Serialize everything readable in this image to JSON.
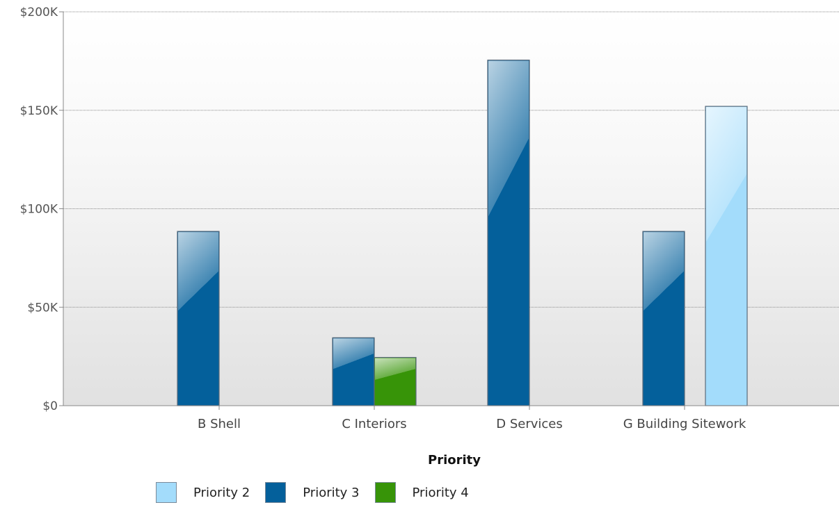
{
  "chart_data": {
    "type": "bar",
    "categories": [
      "B Shell",
      "C Interiors",
      "D Services",
      "G Building Sitework"
    ],
    "series": [
      {
        "name": "Priority 2",
        "color": "#a3dcfb",
        "values": [
          null,
          null,
          null,
          152000
        ]
      },
      {
        "name": "Priority 3",
        "color": "#04609b",
        "values": [
          88500,
          34500,
          175500,
          88500
        ]
      },
      {
        "name": "Priority 4",
        "color": "#379408",
        "values": [
          null,
          24500,
          null,
          null
        ]
      }
    ],
    "y_ticks": [
      "$0",
      "$50K",
      "$100K",
      "$150K",
      "$200K"
    ],
    "ylim": [
      0,
      200000
    ],
    "grid": true,
    "legend_title": "Priority",
    "legend_position": "bottom",
    "title": "",
    "xlabel": "",
    "ylabel": ""
  }
}
